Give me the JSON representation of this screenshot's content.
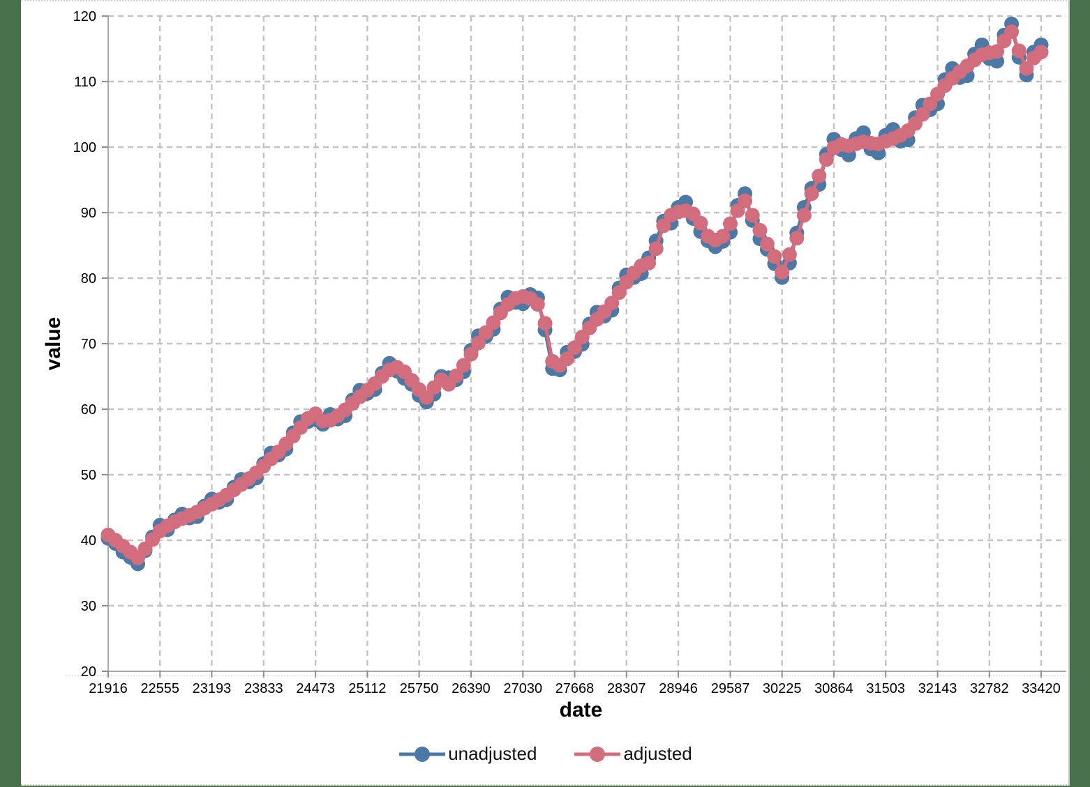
{
  "chart_data": {
    "type": "line",
    "title": "",
    "xlabel": "date",
    "ylabel": "value",
    "xlim": [
      21916,
      33420
    ],
    "ylim": [
      20,
      120
    ],
    "xticks": [
      21916,
      22555,
      23193,
      23833,
      24473,
      25112,
      25750,
      26390,
      27030,
      27668,
      28307,
      28946,
      29587,
      30225,
      30864,
      31503,
      32143,
      32782,
      33420
    ],
    "yticks": [
      20,
      30,
      40,
      50,
      60,
      70,
      80,
      90,
      100,
      110,
      120
    ],
    "grid": "dashed-both",
    "legend_position": "bottom-center",
    "marker": "circle",
    "x": [
      21916,
      22007,
      22098,
      22190,
      22282,
      22372,
      22463,
      22555,
      22647,
      22737,
      22828,
      22920,
      23012,
      23102,
      23193,
      23285,
      23377,
      23468,
      23559,
      23651,
      23743,
      23833,
      23924,
      24016,
      24108,
      24198,
      24289,
      24381,
      24473,
      24563,
      24654,
      24746,
      24838,
      24929,
      25020,
      25112,
      25204,
      25294,
      25385,
      25477,
      25569,
      25659,
      25750,
      25842,
      25934,
      26024,
      26115,
      26207,
      26299,
      26390,
      26481,
      26573,
      26665,
      26755,
      26846,
      26938,
      27030,
      27120,
      27211,
      27303,
      27395,
      27485,
      27576,
      27668,
      27760,
      27851,
      27942,
      28034,
      28126,
      28216,
      28307,
      28399,
      28491,
      28581,
      28672,
      28764,
      28856,
      28946,
      29037,
      29129,
      29221,
      29312,
      29403,
      29495,
      29587,
      29677,
      29768,
      29860,
      29952,
      30042,
      30133,
      30225,
      30317,
      30407,
      30498,
      30590,
      30682,
      30773,
      30864,
      30956,
      31048,
      31138,
      31229,
      31321,
      31413,
      31503,
      31594,
      31686,
      31778,
      31868,
      31959,
      32051,
      32143,
      32234,
      32325,
      32417,
      32509,
      32599,
      32690,
      32782,
      32874,
      32964,
      33055,
      33147,
      33239,
      33329,
      33420
    ],
    "series": [
      {
        "name": "unadjusted",
        "color": "#4B78A5",
        "values": [
          40.3,
          39.5,
          38.2,
          37.4,
          36.4,
          38.4,
          40.5,
          42.3,
          41.6,
          43.1,
          44.0,
          43.4,
          43.6,
          45.2,
          46.3,
          45.8,
          46.2,
          48.1,
          49.3,
          48.9,
          49.5,
          51.7,
          53.3,
          53.0,
          53.9,
          56.4,
          58.1,
          58.1,
          58.4,
          57.7,
          59.2,
          58.5,
          59.0,
          61.4,
          62.9,
          62.4,
          63.0,
          65.5,
          67.0,
          65.8,
          64.7,
          63.8,
          62.1,
          61.1,
          62.3,
          65.0,
          64.8,
          64.5,
          65.7,
          69.0,
          71.2,
          71.1,
          72.2,
          75.3,
          77.1,
          76.3,
          76.1,
          77.5,
          77.0,
          72.1,
          66.2,
          66.0,
          68.7,
          68.8,
          69.9,
          73.0,
          74.8,
          74.2,
          75.1,
          78.5,
          80.5,
          80.1,
          80.7,
          83.1,
          85.7,
          88.7,
          88.4,
          90.8,
          91.6,
          89.1,
          87.1,
          85.7,
          84.8,
          85.6,
          87.0,
          91.1,
          92.9,
          88.8,
          86.0,
          84.4,
          82.2,
          80.1,
          82.3,
          86.9,
          90.8,
          93.7,
          94.3,
          98.9,
          101.2,
          99.6,
          98.8,
          101.3,
          102.2,
          99.7,
          99.1,
          101.8,
          102.7,
          100.9,
          101.1,
          104.5,
          106.4,
          105.7,
          106.6,
          110.3,
          112.0,
          110.6,
          110.9,
          114.2,
          115.6,
          113.5,
          113.1,
          117.1,
          118.8,
          113.7,
          111.0,
          114.5,
          115.6
        ]
      },
      {
        "name": "adjusted",
        "color": "#D16D7D",
        "values": [
          40.8,
          40.0,
          39.1,
          38.2,
          37.3,
          38.7,
          40.1,
          41.4,
          42.2,
          42.8,
          43.3,
          43.8,
          44.3,
          44.9,
          45.5,
          46.2,
          46.9,
          47.7,
          48.5,
          49.4,
          50.3,
          51.3,
          52.4,
          53.5,
          54.7,
          55.9,
          57.2,
          58.6,
          59.3,
          58.2,
          58.3,
          59.0,
          59.9,
          60.9,
          61.9,
          62.9,
          63.9,
          65.0,
          66.0,
          66.4,
          65.7,
          64.4,
          63.0,
          61.8,
          63.3,
          64.5,
          63.8,
          65.1,
          66.7,
          68.4,
          70.1,
          71.7,
          73.2,
          74.7,
          76.0,
          76.9,
          77.2,
          76.9,
          76.0,
          73.1,
          67.3,
          66.7,
          67.7,
          69.4,
          71.0,
          72.4,
          73.7,
          74.9,
          76.2,
          77.8,
          79.4,
          80.8,
          81.9,
          82.3,
          84.5,
          88.0,
          89.6,
          90.1,
          90.3,
          89.8,
          88.4,
          86.4,
          85.8,
          86.4,
          88.3,
          90.3,
          91.8,
          89.6,
          87.3,
          85.2,
          83.3,
          80.9,
          83.6,
          86.1,
          89.6,
          92.9,
          95.6,
          98.1,
          99.9,
          100.4,
          100.2,
          100.5,
          100.8,
          100.6,
          100.5,
          100.9,
          101.3,
          101.8,
          102.5,
          103.6,
          105.0,
          106.6,
          108.1,
          109.4,
          110.5,
          111.5,
          112.4,
          113.3,
          114.1,
          114.4,
          114.6,
          116.2,
          117.6,
          114.7,
          112.0,
          113.6,
          114.5
        ]
      }
    ]
  }
}
